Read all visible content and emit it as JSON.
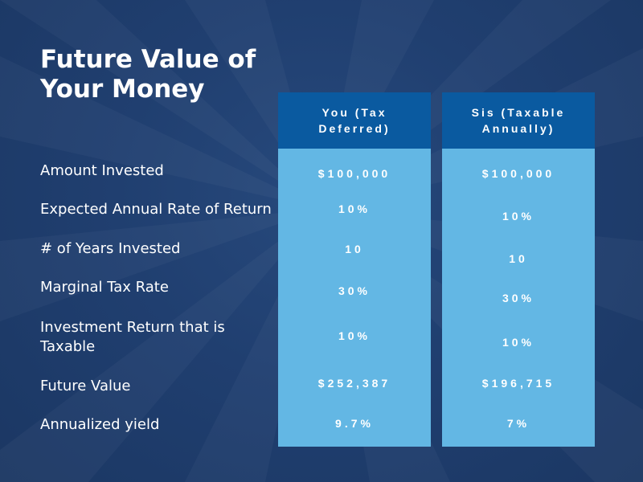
{
  "slide": {
    "title": "Future Value of Your Money",
    "colors": {
      "background": "#203f70",
      "header": "#0a5aa0",
      "column": "#63b7e4",
      "text": "#ffffff"
    }
  },
  "rows": [
    "Amount Invested",
    "Expected Annual Rate of Return",
    "# of Years Invested",
    "Marginal Tax Rate",
    "Investment Return that is Taxable",
    "Future Value",
    "Annualized yield"
  ],
  "columns": [
    {
      "header": "You (Tax Deferred)",
      "values": [
        "$100,000",
        "10%",
        "10",
        "30%",
        "10%",
        "$252,387",
        "9.7%"
      ]
    },
    {
      "header": "Sis (Taxable Annually)",
      "values": [
        "$100,000",
        "10%",
        "10",
        "30%",
        "10%",
        "$196,715",
        "7%"
      ]
    }
  ]
}
